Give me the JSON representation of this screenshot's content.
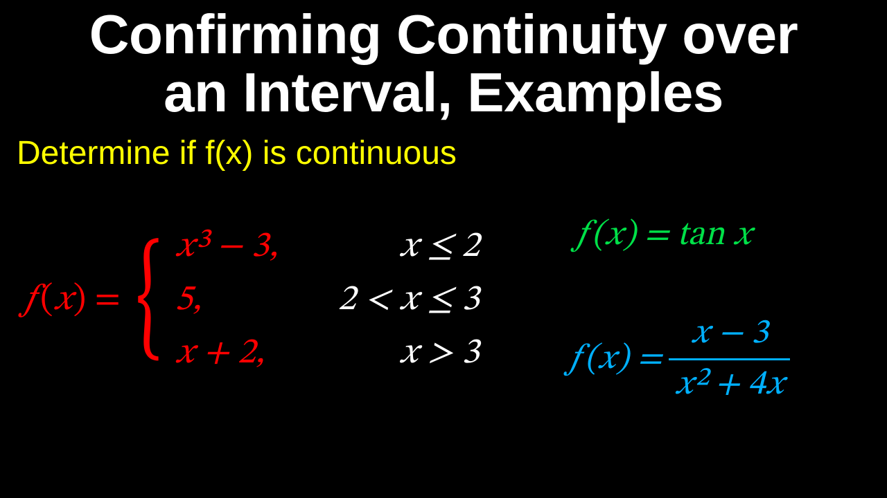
{
  "colors": {
    "background": "#000000",
    "title": "#ffffff",
    "subtitle": "#ffff00",
    "piecewise_expr": "#ff0000",
    "piecewise_cond": "#ffffff",
    "eq_green": "#00e148",
    "eq_blue": "#00b0ff"
  },
  "title": {
    "line1": "Confirming Continuity over",
    "line2": "an Interval, Examples",
    "fontsize": 80,
    "fontweight": "bold"
  },
  "subtitle": {
    "text": "Determine if f(x) is continuous",
    "fontsize": 48
  },
  "piecewise": {
    "lhs_f": "𝑓",
    "lhs_open": "(",
    "lhs_x": "𝑥",
    "lhs_close": ")",
    "lhs_eq": " = ",
    "fontsize": 52,
    "cases": [
      {
        "expr": "𝑥³ − 3,",
        "condition": "𝑥 ≤ 2"
      },
      {
        "expr": "5,",
        "condition": "2 < 𝑥 ≤ 3"
      },
      {
        "expr": "𝑥 + 2,",
        "condition": "𝑥 > 3"
      }
    ]
  },
  "eq_green": {
    "text": "𝑓(𝑥) = tan 𝑥",
    "fontsize": 50
  },
  "eq_blue": {
    "lhs": "𝑓(𝑥) = ",
    "numerator": "𝑥 − 3",
    "denominator": "𝑥² + 4𝑥",
    "fontsize": 50
  }
}
